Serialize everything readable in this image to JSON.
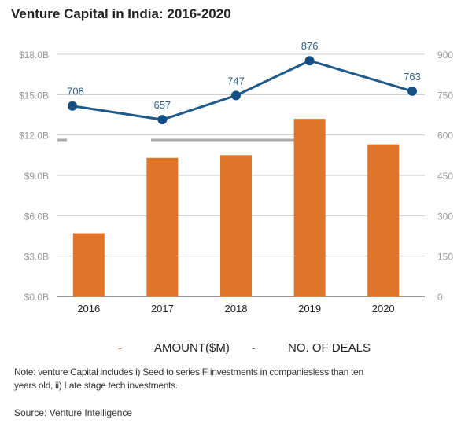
{
  "chart_data": {
    "type": "bar+line",
    "title": "Venture Capital in India: 2016-2020",
    "categories": [
      "2016",
      "2017",
      "2018",
      "2019",
      "2020"
    ],
    "series": [
      {
        "name": "AMOUNT($M)",
        "type": "bar",
        "axis": "left",
        "values": [
          4.7,
          10.3,
          10.5,
          13.2,
          11.3
        ],
        "color": "#E07427"
      },
      {
        "name": "NO. OF DEALS",
        "type": "line",
        "axis": "right",
        "values": [
          708,
          657,
          747,
          876,
          763
        ],
        "labels": [
          "708",
          "657",
          "747",
          "876",
          "763"
        ],
        "color": "#1F5A8A"
      }
    ],
    "y_left": {
      "ticks": [
        "$0.0B",
        "$3.0B",
        "$6.0B",
        "$9.0B",
        "$12.0B",
        "$15.0B",
        "$18.0B"
      ],
      "range": [
        0,
        18
      ]
    },
    "y_right": {
      "ticks": [
        "0",
        "150",
        "300",
        "450",
        "600",
        "750",
        "900"
      ],
      "range": [
        0,
        900
      ]
    },
    "grid": true,
    "legend_position": "bottom"
  },
  "legend": {
    "item1": "AMOUNT($M)",
    "item2": "NO. OF DEALS",
    "dash": "-"
  },
  "note": "Note: venture Capital includes i) Seed to series F investments in companiesless than ten",
  "note_line2": "years old, ii) Late stage tech investments.",
  "source": "Source: Venture Intelligence"
}
